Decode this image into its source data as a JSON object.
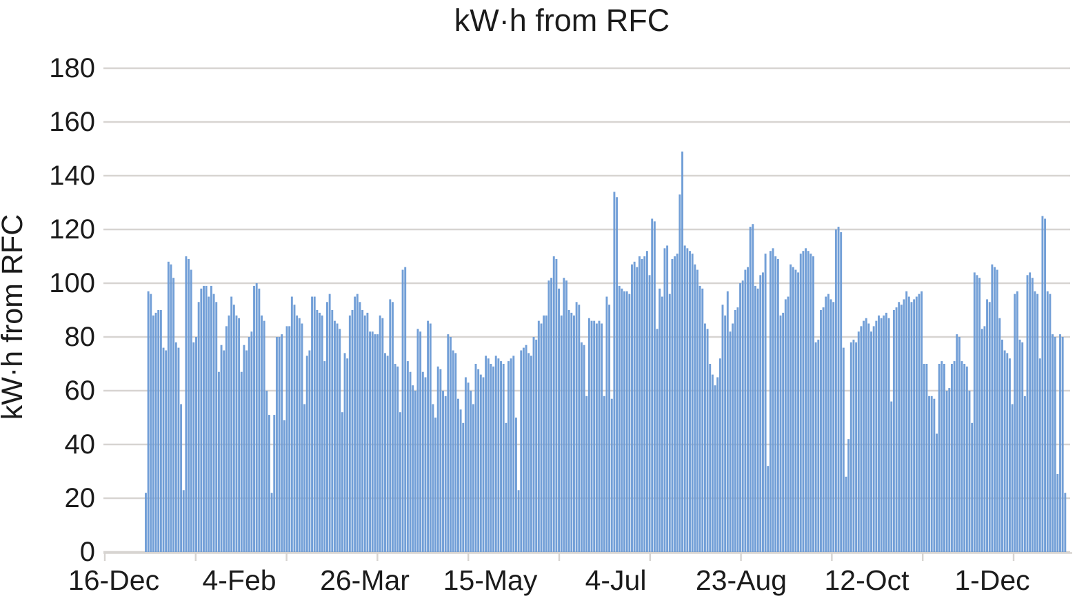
{
  "chart_data": {
    "type": "bar",
    "title": "kW·h from RFC",
    "ylabel": "kW·h from RFC",
    "xlabel": "",
    "series_name": "kW·h from RFC",
    "x_tick_labels": [
      "16-Dec",
      "4-Feb",
      "26-Mar",
      "15-May",
      "4-Jul",
      "23-Aug",
      "12-Oct",
      "1-Dec"
    ],
    "x_tick_interval_days": 50,
    "y_ticks": [
      0,
      20,
      40,
      60,
      80,
      100,
      120,
      140,
      160,
      180
    ],
    "ylim": [
      0,
      180
    ],
    "grid": "horizontal",
    "legend": "none",
    "colors": {
      "bar": "#6a9ad5",
      "gridline": "#d7d4d1",
      "text": "#1b1b1b",
      "background": "#ffffff"
    },
    "values": [
      22,
      97,
      96,
      88,
      89,
      90,
      90,
      76,
      75,
      108,
      107,
      102,
      78,
      76,
      55,
      23,
      110,
      109,
      105,
      78,
      80,
      93,
      98,
      99,
      99,
      95,
      99,
      96,
      93,
      67,
      77,
      75,
      84,
      88,
      95,
      92,
      88,
      87,
      67,
      77,
      75,
      80,
      82,
      99,
      100,
      98,
      88,
      86,
      60,
      51,
      22,
      51,
      80,
      80,
      81,
      49,
      84,
      84,
      95,
      92,
      88,
      87,
      85,
      55,
      73,
      75,
      95,
      95,
      90,
      89,
      88,
      71,
      93,
      96,
      90,
      86,
      85,
      83,
      52,
      74,
      72,
      88,
      90,
      95,
      96,
      93,
      90,
      88,
      89,
      82,
      82,
      81,
      81,
      88,
      87,
      74,
      73,
      94,
      93,
      70,
      69,
      52,
      105,
      106,
      71,
      67,
      62,
      60,
      83,
      82,
      67,
      65,
      86,
      85,
      55,
      50,
      69,
      68,
      60,
      58,
      81,
      80,
      75,
      74,
      57,
      53,
      48,
      65,
      63,
      60,
      55,
      70,
      68,
      66,
      65,
      73,
      72,
      70,
      69,
      73,
      72,
      71,
      70,
      48,
      71,
      72,
      73,
      50,
      23,
      75,
      76,
      77,
      74,
      73,
      80,
      79,
      86,
      85,
      88,
      88,
      101,
      102,
      110,
      109,
      98,
      88,
      102,
      101,
      90,
      89,
      88,
      93,
      92,
      78,
      77,
      58,
      87,
      86,
      86,
      85,
      86,
      85,
      58,
      95,
      92,
      57,
      134,
      132,
      99,
      98,
      97,
      97,
      96,
      107,
      108,
      106,
      110,
      109,
      110,
      112,
      103,
      124,
      123,
      83,
      98,
      95,
      113,
      114,
      96,
      109,
      110,
      111,
      133,
      149,
      114,
      113,
      112,
      111,
      107,
      105,
      99,
      98,
      85,
      83,
      70,
      66,
      62,
      65,
      72,
      92,
      88,
      97,
      82,
      85,
      90,
      91,
      100,
      101,
      105,
      106,
      121,
      122,
      99,
      98,
      103,
      104,
      111,
      32,
      112,
      113,
      110,
      109,
      88,
      89,
      94,
      95,
      107,
      106,
      105,
      104,
      111,
      112,
      113,
      112,
      111,
      110,
      78,
      79,
      90,
      91,
      95,
      96,
      94,
      93,
      120,
      121,
      119,
      76,
      28,
      42,
      78,
      79,
      78,
      82,
      84,
      86,
      87,
      85,
      82,
      84,
      86,
      88,
      87,
      88,
      89,
      87,
      56,
      90,
      91,
      93,
      92,
      94,
      97,
      95,
      93,
      94,
      95,
      96,
      97,
      70,
      70,
      58,
      58,
      57,
      44,
      70,
      71,
      70,
      60,
      61,
      70,
      71,
      81,
      80,
      71,
      70,
      69,
      60,
      48,
      104,
      103,
      102,
      83,
      84,
      94,
      93,
      107,
      106,
      105,
      87,
      79,
      75,
      74,
      72,
      55,
      96,
      97,
      79,
      78,
      58,
      103,
      104,
      102,
      97,
      96,
      72,
      125,
      124,
      97,
      96,
      81,
      80,
      29,
      81,
      80,
      22
    ]
  }
}
